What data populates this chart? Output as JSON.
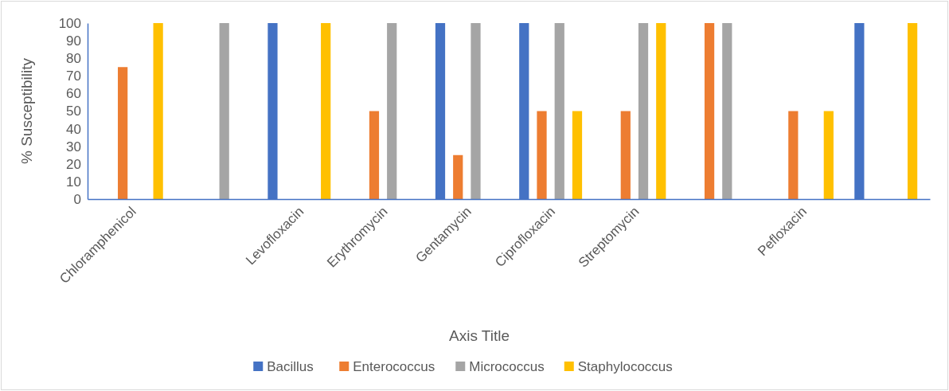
{
  "chart_data": {
    "type": "bar",
    "ylabel": "% Susceptibility",
    "xlabel": "Axis Title",
    "categories": [
      "Chloramphenicol",
      null,
      "Levofloxacin",
      "Erythromycin",
      "Gentamycin",
      "Ciprofloxacin",
      "Streptomycin",
      null,
      "Pefloxacin",
      null
    ],
    "series": [
      {
        "name": "Bacillus",
        "color": "#4472c4",
        "values": [
          0,
          0,
          100,
          0,
          100,
          100,
          0,
          0,
          0,
          100
        ]
      },
      {
        "name": "Enterococcus",
        "color": "#ed7d31",
        "values": [
          75,
          0,
          0,
          50,
          25,
          50,
          50,
          100,
          50,
          0
        ]
      },
      {
        "name": "Micrococcus",
        "color": "#a5a5a5",
        "values": [
          0,
          100,
          0,
          100,
          100,
          100,
          100,
          100,
          0,
          0
        ]
      },
      {
        "name": "Staphylococcus",
        "color": "#ffc000",
        "values": [
          100,
          0,
          100,
          0,
          0,
          50,
          100,
          0,
          50,
          100
        ]
      }
    ],
    "ylim": [
      0,
      100
    ],
    "yticks": [
      0,
      10,
      20,
      30,
      40,
      50,
      60,
      70,
      80,
      90,
      100
    ],
    "grid": false,
    "legend": "bottom"
  }
}
